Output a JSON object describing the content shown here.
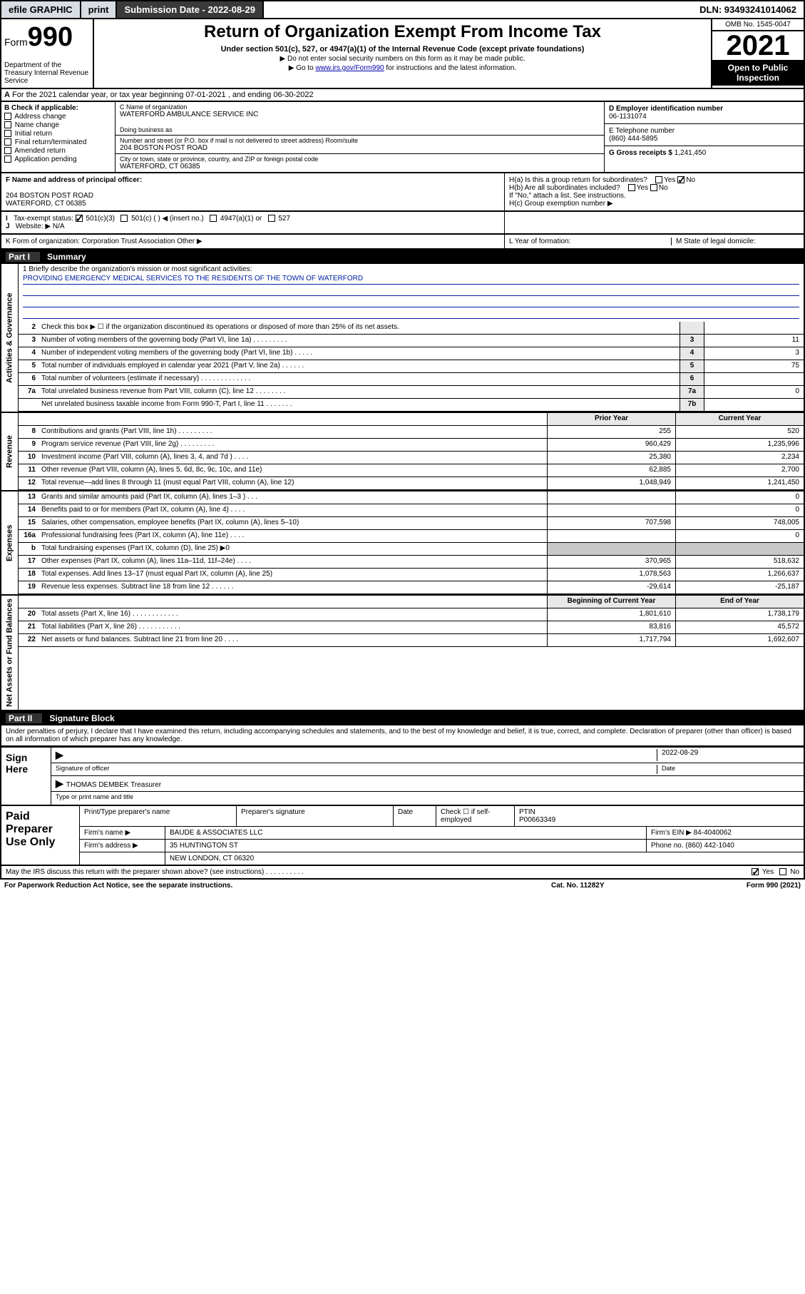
{
  "topbar": {
    "efile": "efile GRAPHIC",
    "print": "print",
    "subdate_label": "Submission Date - 2022-08-29",
    "dln": "DLN: 93493241014062"
  },
  "header": {
    "form_prefix": "Form",
    "form_num": "990",
    "dept": "Department of the Treasury Internal Revenue Service",
    "title": "Return of Organization Exempt From Income Tax",
    "subtitle": "Under section 501(c), 527, or 4947(a)(1) of the Internal Revenue Code (except private foundations)",
    "note1": "▶ Do not enter social security numbers on this form as it may be made public.",
    "note2_pre": "▶ Go to ",
    "note2_link": "www.irs.gov/Form990",
    "note2_post": " for instructions and the latest information.",
    "omb": "OMB No. 1545-0047",
    "year": "2021",
    "open": "Open to Public Inspection"
  },
  "row_a": "For the 2021 calendar year, or tax year beginning 07-01-2021  , and ending 06-30-2022",
  "col_b": {
    "hdr": "B Check if applicable:",
    "items": [
      "Address change",
      "Name change",
      "Initial return",
      "Final return/terminated",
      "Amended return",
      "Application pending"
    ]
  },
  "col_c": {
    "name_lbl": "C Name of organization",
    "name": "WATERFORD AMBULANCE SERVICE INC",
    "dba_lbl": "Doing business as",
    "addr_lbl": "Number and street (or P.O. box if mail is not delivered to street address)       Room/suite",
    "addr": "204 BOSTON POST ROAD",
    "city_lbl": "City or town, state or province, country, and ZIP or foreign postal code",
    "city": "WATERFORD, CT  06385"
  },
  "col_d": {
    "ein_lbl": "D Employer identification number",
    "ein": "06-1131074",
    "tel_lbl": "E Telephone number",
    "tel": "(860) 444-5895",
    "gross_lbl": "G Gross receipts $",
    "gross": "1,241,450"
  },
  "row_f": {
    "lbl": "F  Name and address of principal officer:",
    "addr1": "204 BOSTON POST ROAD",
    "addr2": "WATERFORD, CT  06385"
  },
  "row_h": {
    "ha": "H(a)  Is this a group return for subordinates?",
    "hb": "H(b)  Are all subordinates included?",
    "hb_note": "If \"No,\" attach a list. See instructions.",
    "hc": "H(c)  Group exemption number ▶"
  },
  "row_i": {
    "lbl": "Tax-exempt status:",
    "opts": [
      "501(c)(3)",
      "501(c) (  ) ◀ (insert no.)",
      "4947(a)(1) or",
      "527"
    ]
  },
  "row_j": "Website: ▶  N/A",
  "row_k": "K Form of organization:     Corporation     Trust     Association     Other ▶",
  "row_l": {
    "yof": "L Year of formation:",
    "state": "M State of legal domicile:"
  },
  "part1": {
    "num": "Part I",
    "title": "Summary"
  },
  "mission": {
    "lbl": "1  Briefly describe the organization's mission or most significant activities:",
    "txt": "PROVIDING EMERGENCY MEDICAL SERVICES TO THE RESIDENTS OF THE TOWN OF WATERFORD"
  },
  "sect_labels": {
    "gov": "Activities & Governance",
    "rev": "Revenue",
    "exp": "Expenses",
    "net": "Net Assets or Fund Balances"
  },
  "gov_lines": [
    {
      "n": "2",
      "t": "Check this box ▶ ☐  if the organization discontinued its operations or disposed of more than 25% of its net assets.",
      "box": "",
      "v": ""
    },
    {
      "n": "3",
      "t": "Number of voting members of the governing body (Part VI, line 1a)  .   .   .   .   .   .   .   .   .",
      "box": "3",
      "v": "11"
    },
    {
      "n": "4",
      "t": "Number of independent voting members of the governing body (Part VI, line 1b)  .   .   .   .   .",
      "box": "4",
      "v": "3"
    },
    {
      "n": "5",
      "t": "Total number of individuals employed in calendar year 2021 (Part V, line 2a)  .   .   .   .   .   .",
      "box": "5",
      "v": "75"
    },
    {
      "n": "6",
      "t": "Total number of volunteers (estimate if necessary)  .   .   .   .   .   .   .   .   .   .   .   .   .",
      "box": "6",
      "v": ""
    },
    {
      "n": "7a",
      "t": "Total unrelated business revenue from Part VIII, column (C), line 12  .   .   .   .   .   .   .   .",
      "box": "7a",
      "v": "0"
    },
    {
      "n": "",
      "t": "Net unrelated business taxable income from Form 990-T, Part I, line 11  .   .   .   .   .   .   .",
      "box": "7b",
      "v": ""
    }
  ],
  "two_col_hdr": {
    "py": "Prior Year",
    "cy": "Current Year"
  },
  "rev_lines": [
    {
      "n": "8",
      "t": "Contributions and grants (Part VIII, line 1h)  .   .   .   .   .   .   .   .   .",
      "py": "255",
      "cy": "520"
    },
    {
      "n": "9",
      "t": "Program service revenue (Part VIII, line 2g)  .   .   .   .   .   .   .   .   .",
      "py": "960,429",
      "cy": "1,235,996"
    },
    {
      "n": "10",
      "t": "Investment income (Part VIII, column (A), lines 3, 4, and 7d )  .   .   .   .",
      "py": "25,380",
      "cy": "2,234"
    },
    {
      "n": "11",
      "t": "Other revenue (Part VIII, column (A), lines 5, 6d, 8c, 9c, 10c, and 11e)",
      "py": "62,885",
      "cy": "2,700"
    },
    {
      "n": "12",
      "t": "Total revenue—add lines 8 through 11 (must equal Part VIII, column (A), line 12)",
      "py": "1,048,949",
      "cy": "1,241,450"
    }
  ],
  "exp_lines": [
    {
      "n": "13",
      "t": "Grants and similar amounts paid (Part IX, column (A), lines 1–3 )  .   .   .",
      "py": "",
      "cy": "0"
    },
    {
      "n": "14",
      "t": "Benefits paid to or for members (Part IX, column (A), line 4)  .   .   .   .",
      "py": "",
      "cy": "0"
    },
    {
      "n": "15",
      "t": "Salaries, other compensation, employee benefits (Part IX, column (A), lines 5–10)",
      "py": "707,598",
      "cy": "748,005"
    },
    {
      "n": "16a",
      "t": "Professional fundraising fees (Part IX, column (A), line 11e)  .   .   .   .",
      "py": "",
      "cy": "0"
    },
    {
      "n": "b",
      "t": "Total fundraising expenses (Part IX, column (D), line 25) ▶0",
      "py": "shade",
      "cy": "shade"
    },
    {
      "n": "17",
      "t": "Other expenses (Part IX, column (A), lines 11a–11d, 11f–24e)  .   .   .   .",
      "py": "370,965",
      "cy": "518,632"
    },
    {
      "n": "18",
      "t": "Total expenses. Add lines 13–17 (must equal Part IX, column (A), line 25)",
      "py": "1,078,563",
      "cy": "1,266,637"
    },
    {
      "n": "19",
      "t": "Revenue less expenses. Subtract line 18 from line 12  .   .   .   .   .   .",
      "py": "-29,614",
      "cy": "-25,187"
    }
  ],
  "net_hdr": {
    "py": "Beginning of Current Year",
    "cy": "End of Year"
  },
  "net_lines": [
    {
      "n": "20",
      "t": "Total assets (Part X, line 16)  .   .   .   .   .   .   .   .   .   .   .   .",
      "py": "1,801,610",
      "cy": "1,738,179"
    },
    {
      "n": "21",
      "t": "Total liabilities (Part X, line 26)  .   .   .   .   .   .   .   .   .   .   .",
      "py": "83,816",
      "cy": "45,572"
    },
    {
      "n": "22",
      "t": "Net assets or fund balances. Subtract line 21 from line 20  .   .   .   .",
      "py": "1,717,794",
      "cy": "1,692,607"
    }
  ],
  "part2": {
    "num": "Part II",
    "title": "Signature Block"
  },
  "penalties": "Under penalties of perjury, I declare that I have examined this return, including accompanying schedules and statements, and to the best of my knowledge and belief, it is true, correct, and complete. Declaration of preparer (other than officer) is based on all information of which preparer has any knowledge.",
  "sign": {
    "here": "Sign Here",
    "sig_lbl": "Signature of officer",
    "date": "2022-08-29",
    "date_lbl": "Date",
    "name": "THOMAS DEMBEK  Treasurer",
    "name_lbl": "Type or print name and title"
  },
  "prep": {
    "title": "Paid Preparer Use Only",
    "h1": "Print/Type preparer's name",
    "h2": "Preparer's signature",
    "h3": "Date",
    "h4_pre": "Check ☐ if self-employed",
    "h5": "PTIN",
    "ptin": "P00663349",
    "firm_lbl": "Firm's name    ▶",
    "firm": "BAUDE & ASSOCIATES LLC",
    "ein_lbl": "Firm's EIN ▶",
    "ein": "84-4040062",
    "addr_lbl": "Firm's address ▶",
    "addr1": "35 HUNTINGTON ST",
    "addr2": "NEW LONDON, CT  06320",
    "phone_lbl": "Phone no.",
    "phone": "(860) 442-1040"
  },
  "may": "May the IRS discuss this return with the preparer shown above? (see instructions)  .   .   .   .   .   .   .   .   .   .",
  "bottom": {
    "pra": "For Paperwork Reduction Act Notice, see the separate instructions.",
    "cat": "Cat. No. 11282Y",
    "form": "Form 990 (2021)"
  },
  "colors": {
    "link": "#0200aa",
    "mission_line": "#0020a0",
    "topbar_btn": "#d8dde3",
    "shade": "#c8c8c8"
  }
}
